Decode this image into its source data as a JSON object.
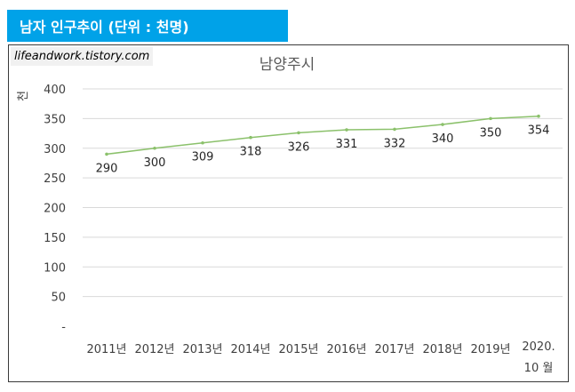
{
  "header": {
    "title": "남자 인구추이 (단위 : 천명)"
  },
  "watermark": {
    "text": "lifeandwork.tistory.com"
  },
  "colors": {
    "header_bg": "#00a2e8",
    "line": "#8bc16b",
    "grid": "#d9d9d9"
  },
  "chart_data": {
    "type": "line",
    "title": "남양주시",
    "ylabel": "천",
    "ylim": [
      0,
      400
    ],
    "grid": true,
    "y_ticks": [
      "-",
      "50",
      "100",
      "150",
      "200",
      "250",
      "300",
      "350",
      "400"
    ],
    "categories": [
      "2011년",
      "2012년",
      "2013년",
      "2014년",
      "2015년",
      "2016년",
      "2017년",
      "2018년",
      "2019년",
      "2020. 10 월"
    ],
    "series": [
      {
        "values": [
          290,
          300,
          309,
          318,
          326,
          331,
          332,
          340,
          350,
          354
        ]
      }
    ]
  }
}
